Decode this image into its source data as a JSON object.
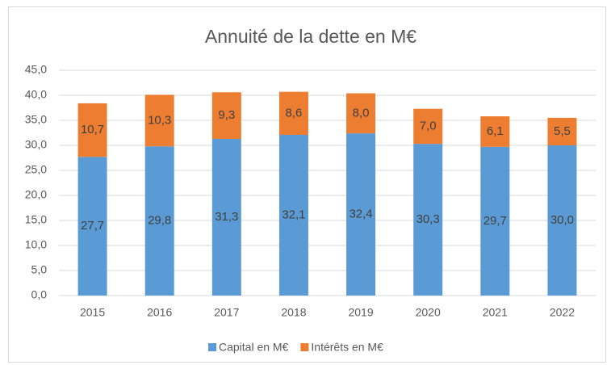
{
  "chart_data": {
    "type": "stacked_bar",
    "title": "Annuité de la dette en M€",
    "categories": [
      "2015",
      "2016",
      "2017",
      "2018",
      "2019",
      "2020",
      "2021",
      "2022"
    ],
    "series": [
      {
        "name": "Capital en M€",
        "color": "#5b9bd5",
        "values": [
          27.7,
          29.8,
          31.3,
          32.1,
          32.4,
          30.3,
          29.7,
          30.0
        ],
        "value_labels": [
          "27,7",
          "29,8",
          "31,3",
          "32,1",
          "32,4",
          "30,3",
          "29,7",
          "30,0"
        ]
      },
      {
        "name": "Intérêts en M€",
        "color": "#ed7d31",
        "values": [
          10.7,
          10.3,
          9.3,
          8.6,
          8.0,
          7.0,
          6.1,
          5.5
        ],
        "value_labels": [
          "10,7",
          "10,3",
          "9,3",
          "8,6",
          "8,0",
          "7,0",
          "6,1",
          "5,5"
        ]
      }
    ],
    "ylim": [
      0,
      45
    ],
    "yticks": [
      {
        "value": 0,
        "label": "0,0"
      },
      {
        "value": 5,
        "label": "5,0"
      },
      {
        "value": 10,
        "label": "10,0"
      },
      {
        "value": 15,
        "label": "15,0"
      },
      {
        "value": 20,
        "label": "20,0"
      },
      {
        "value": 25,
        "label": "25,0"
      },
      {
        "value": 30,
        "label": "30,0"
      },
      {
        "value": 35,
        "label": "35,0"
      },
      {
        "value": 40,
        "label": "40,0"
      },
      {
        "value": 45,
        "label": "45,0"
      }
    ],
    "grid": true,
    "legend": "bottom"
  }
}
